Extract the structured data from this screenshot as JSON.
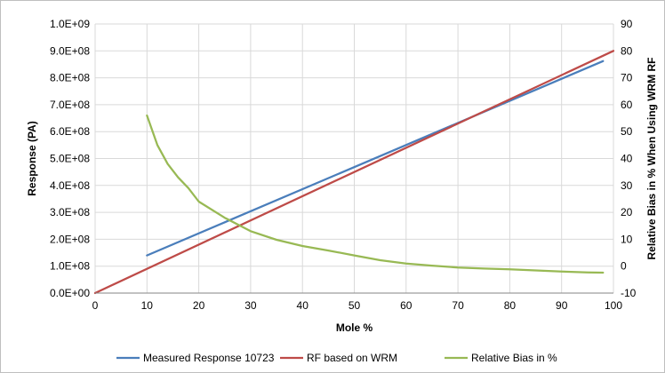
{
  "chart_data": {
    "type": "line",
    "title": "",
    "xlabel": "Mole %",
    "ylabel": "Response (PA)",
    "y2label": "Relative Bias in % When Using WRM RF",
    "xlim": [
      0,
      100
    ],
    "ylim": [
      0,
      1000000000
    ],
    "y2lim": [
      -10,
      90
    ],
    "x_ticks": [
      0,
      10,
      20,
      30,
      40,
      50,
      60,
      70,
      80,
      90,
      100
    ],
    "y_ticks": [
      "0.0E+00",
      "1.0E+08",
      "2.0E+08",
      "3.0E+08",
      "4.0E+08",
      "5.0E+08",
      "6.0E+08",
      "7.0E+08",
      "8.0E+08",
      "9.0E+08",
      "1.0E+09"
    ],
    "y2_ticks": [
      -10,
      0,
      10,
      20,
      30,
      40,
      50,
      60,
      70,
      80,
      90
    ],
    "grid": true,
    "legend_position": "bottom",
    "series": [
      {
        "name": "Measured Response 10723",
        "axis": "left",
        "color": "#4a7ebb",
        "x": [
          10,
          98
        ],
        "y": [
          140000000,
          862000000
        ]
      },
      {
        "name": "RF based on WRM",
        "axis": "left",
        "color": "#be4b48",
        "x": [
          0,
          100
        ],
        "y": [
          0,
          900000000
        ]
      },
      {
        "name": "Relative Bias in %",
        "axis": "right",
        "color": "#98b954",
        "x": [
          10,
          12,
          14,
          16,
          18,
          20,
          25,
          30,
          35,
          40,
          45,
          50,
          55,
          60,
          65,
          70,
          75,
          80,
          85,
          90,
          95,
          98
        ],
        "y": [
          56,
          45,
          38,
          33,
          29,
          24,
          18,
          13,
          9.8,
          7.5,
          5.8,
          4.0,
          2.2,
          1.0,
          0.2,
          -0.5,
          -0.9,
          -1.2,
          -1.6,
          -2.0,
          -2.3,
          -2.4
        ]
      }
    ]
  }
}
